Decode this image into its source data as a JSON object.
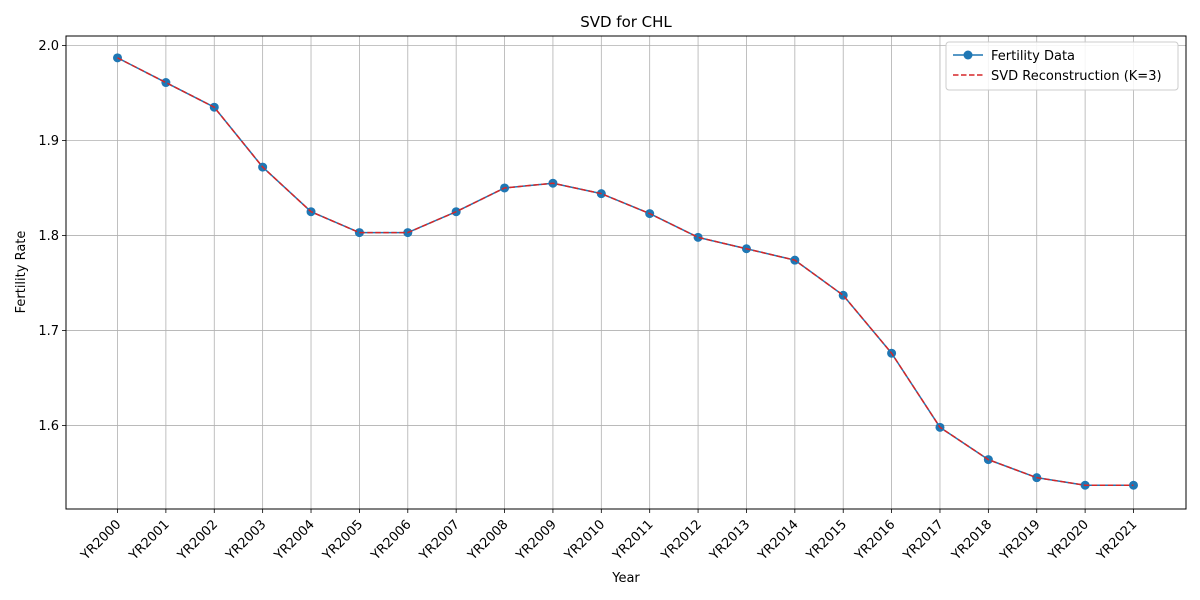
{
  "chart_data": {
    "type": "line",
    "title": "SVD for CHL",
    "xlabel": "Year",
    "ylabel": "Fertility Rate",
    "categories": [
      "YR2000",
      "YR2001",
      "YR2002",
      "YR2003",
      "YR2004",
      "YR2005",
      "YR2006",
      "YR2007",
      "YR2008",
      "YR2009",
      "YR2010",
      "YR2011",
      "YR2012",
      "YR2013",
      "YR2014",
      "YR2015",
      "YR2016",
      "YR2017",
      "YR2018",
      "YR2019",
      "YR2020",
      "YR2021"
    ],
    "ylim": [
      1.512,
      2.01
    ],
    "yticks": [
      1.6,
      1.7,
      1.8,
      1.9,
      2.0
    ],
    "ytick_labels": [
      "1.6",
      "1.7",
      "1.8",
      "1.9",
      "2.0"
    ],
    "grid": true,
    "legend_position": "top-right",
    "series": [
      {
        "name": "Fertility Data",
        "color": "#1f77b4",
        "style": "solid",
        "marker": "circle",
        "values": [
          1.987,
          1.961,
          1.935,
          1.872,
          1.825,
          1.803,
          1.803,
          1.825,
          1.85,
          1.855,
          1.844,
          1.823,
          1.798,
          1.786,
          1.774,
          1.737,
          1.676,
          1.598,
          1.564,
          1.545,
          1.537,
          1.537
        ]
      },
      {
        "name": "SVD Reconstruction (K=3)",
        "color": "#d62728",
        "style": "dashed",
        "marker": "none",
        "values": [
          1.987,
          1.961,
          1.935,
          1.872,
          1.825,
          1.803,
          1.803,
          1.825,
          1.85,
          1.855,
          1.844,
          1.823,
          1.798,
          1.786,
          1.774,
          1.737,
          1.676,
          1.598,
          1.564,
          1.545,
          1.537,
          1.537
        ]
      }
    ]
  }
}
